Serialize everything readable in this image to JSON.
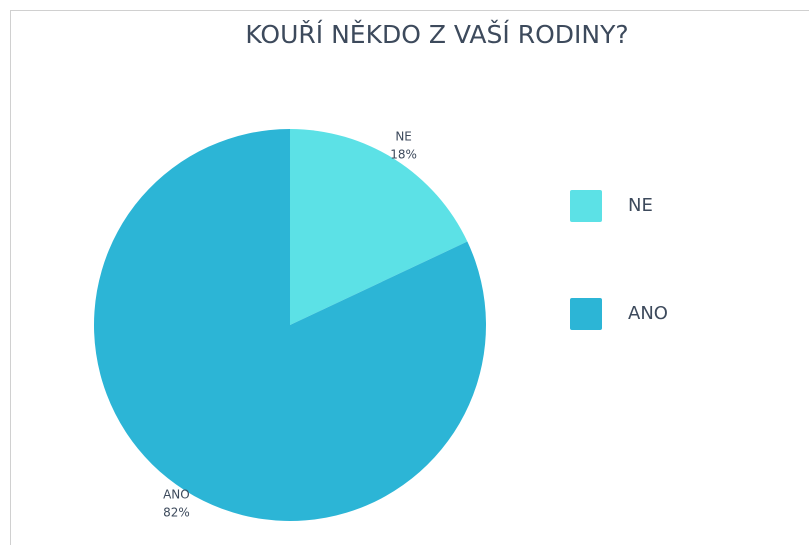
{
  "chart_data": {
    "type": "pie",
    "title": "KOUŘÍ NĚKDO Z VAŠÍ RODINY?",
    "categories": [
      "NE",
      "ANO"
    ],
    "values": [
      18,
      82
    ],
    "value_labels": [
      "18%",
      "82%"
    ],
    "colors": [
      "#5ce1e6",
      "#2cb5d6"
    ],
    "legend": "right"
  }
}
